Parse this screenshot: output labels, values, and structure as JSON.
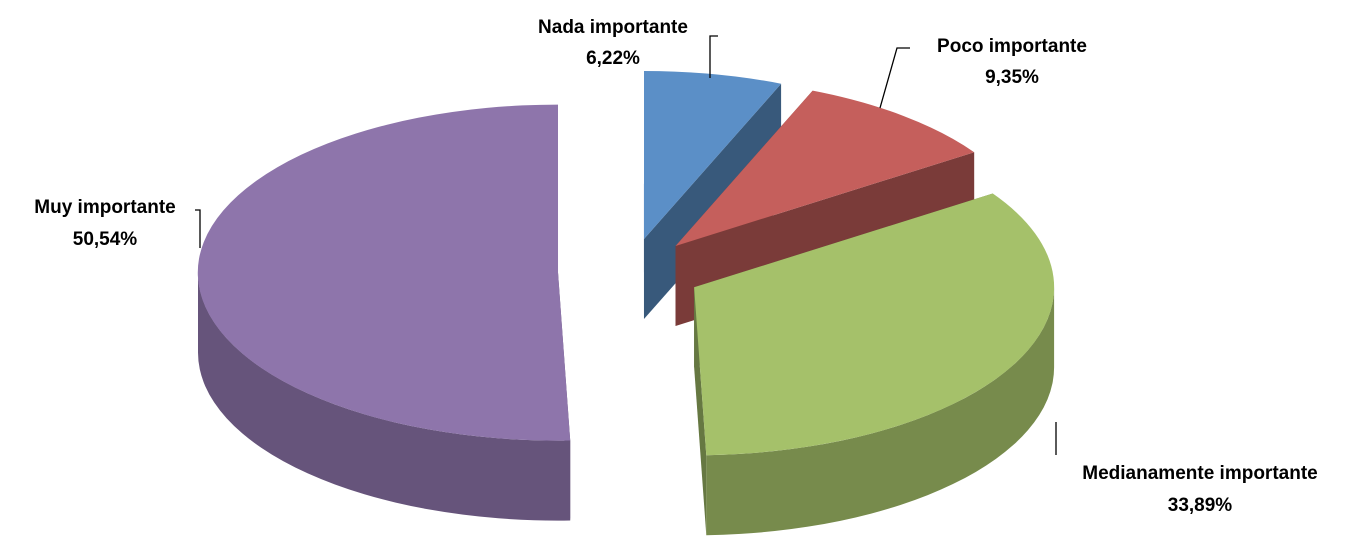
{
  "chart_data": {
    "type": "pie3d",
    "categories": [
      "Nada importante",
      "Poco importante",
      "Medianamente importante",
      "Muy importante"
    ],
    "values": [
      6.22,
      9.35,
      33.89,
      50.54
    ],
    "value_labels": [
      "6,22%",
      "9,35%",
      "33,89%",
      "50,54%"
    ],
    "colors": [
      "#5b8fc7",
      "#c55f5c",
      "#a5c16a",
      "#8e75ab"
    ]
  }
}
